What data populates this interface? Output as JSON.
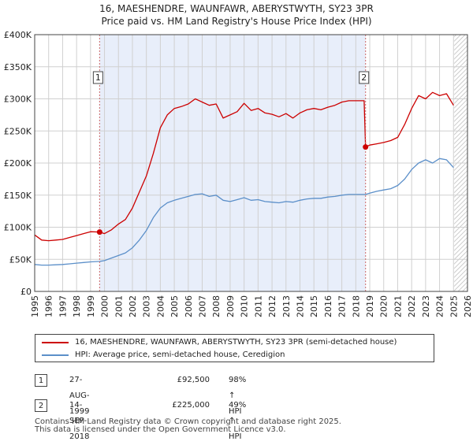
{
  "title_line1": "16, MAESHENDRE, WAUNFAWR, ABERYSTWYTH, SY23 3PR",
  "title_line2": "Price paid vs. HM Land Registry's House Price Index (HPI)",
  "colors": {
    "property": "#cc0000",
    "hpi": "#5b8fc9",
    "shade": "#e8eefa",
    "grid": "#d0d0d0",
    "marker_line": "#cc6666",
    "hatch": "#bbbbbb"
  },
  "legend": {
    "property_label": "16, MAESHENDRE, WAUNFAWR, ABERYSTWYTH, SY23 3PR (semi-detached house)",
    "hpi_label": "HPI: Average price, semi-detached house, Ceredigion"
  },
  "transactions": [
    {
      "num": "1",
      "date": "27-AUG-1999",
      "price": "£92,500",
      "hpi_change": "98% ↑ HPI"
    },
    {
      "num": "2",
      "date": "14-SEP-2018",
      "price": "£225,000",
      "hpi_change": "49% ↑ HPI"
    }
  ],
  "footer": {
    "line1": "Contains HM Land Registry data © Crown copyright and database right 2025.",
    "line2": "This data is licensed under the Open Government Licence v3.0."
  },
  "chart_data": {
    "type": "line",
    "title": "16, MAESHENDRE, WAUNFAWR, ABERYSTWYTH, SY23 3PR",
    "subtitle": "Price paid vs. HM Land Registry's House Price Index (HPI)",
    "xlim": [
      1995,
      2026
    ],
    "ylim": [
      0,
      400000
    ],
    "y_ticks": [
      0,
      50000,
      100000,
      150000,
      200000,
      250000,
      300000,
      350000,
      400000
    ],
    "y_tick_labels": [
      "£0",
      "£50K",
      "£100K",
      "£150K",
      "£200K",
      "£250K",
      "£300K",
      "£350K",
      "£400K"
    ],
    "x_ticks": [
      1995,
      1996,
      1997,
      1998,
      1999,
      2000,
      2001,
      2002,
      2003,
      2004,
      2005,
      2006,
      2007,
      2008,
      2009,
      2010,
      2011,
      2012,
      2013,
      2014,
      2015,
      2016,
      2017,
      2018,
      2019,
      2020,
      2021,
      2022,
      2023,
      2024,
      2025,
      2026
    ],
    "grid": true,
    "shaded_period": [
      1999.65,
      2018.7
    ],
    "future_hatch_from": 2025.05,
    "sales": [
      {
        "label": "1",
        "x": 1999.65,
        "y": 92500
      },
      {
        "label": "2",
        "x": 2018.7,
        "y": 225000
      }
    ],
    "series": [
      {
        "name": "16, MAESHENDRE, WAUNFAWR, ABERYSTWYTH, SY23 3PR (semi-detached house)",
        "x": [
          1995.0,
          1995.5,
          1996.0,
          1996.5,
          1997.0,
          1997.5,
          1998.0,
          1998.5,
          1999.0,
          1999.65,
          2000.0,
          2000.5,
          2001.0,
          2001.5,
          2002.0,
          2002.5,
          2003.0,
          2003.5,
          2004.0,
          2004.5,
          2005.0,
          2005.5,
          2006.0,
          2006.5,
          2007.0,
          2007.5,
          2008.0,
          2008.5,
          2009.0,
          2009.5,
          2010.0,
          2010.5,
          2011.0,
          2011.5,
          2012.0,
          2012.5,
          2013.0,
          2013.5,
          2014.0,
          2014.5,
          2015.0,
          2015.5,
          2016.0,
          2016.5,
          2017.0,
          2017.5,
          2018.0,
          2018.6,
          2018.7,
          2019.0,
          2019.5,
          2020.0,
          2020.5,
          2021.0,
          2021.5,
          2022.0,
          2022.5,
          2023.0,
          2023.5,
          2024.0,
          2024.5,
          2025.0
        ],
        "values": [
          88000,
          80000,
          79000,
          80000,
          81000,
          84000,
          87000,
          90000,
          93000,
          92500,
          90000,
          96000,
          105000,
          112000,
          130000,
          155000,
          180000,
          215000,
          255000,
          275000,
          285000,
          288000,
          292000,
          300000,
          295000,
          290000,
          292000,
          270000,
          275000,
          280000,
          293000,
          282000,
          285000,
          278000,
          276000,
          272000,
          277000,
          270000,
          278000,
          283000,
          285000,
          283000,
          287000,
          290000,
          295000,
          297000,
          297000,
          297000,
          225000,
          228000,
          230000,
          232000,
          235000,
          240000,
          260000,
          285000,
          305000,
          300000,
          310000,
          305000,
          308000,
          290000
        ]
      },
      {
        "name": "HPI: Average price, semi-detached house, Ceredigion",
        "x": [
          1995.0,
          1995.5,
          1996.0,
          1996.5,
          1997.0,
          1997.5,
          1998.0,
          1998.5,
          1999.0,
          1999.65,
          2000.0,
          2000.5,
          2001.0,
          2001.5,
          2002.0,
          2002.5,
          2003.0,
          2003.5,
          2004.0,
          2004.5,
          2005.0,
          2005.5,
          2006.0,
          2006.5,
          2007.0,
          2007.5,
          2008.0,
          2008.5,
          2009.0,
          2009.5,
          2010.0,
          2010.5,
          2011.0,
          2011.5,
          2012.0,
          2012.5,
          2013.0,
          2013.5,
          2014.0,
          2014.5,
          2015.0,
          2015.5,
          2016.0,
          2016.5,
          2017.0,
          2017.5,
          2018.0,
          2018.7,
          2019.0,
          2019.5,
          2020.0,
          2020.5,
          2021.0,
          2021.5,
          2022.0,
          2022.5,
          2023.0,
          2023.5,
          2024.0,
          2024.5,
          2025.0
        ],
        "values": [
          42000,
          41000,
          41000,
          41500,
          42000,
          43000,
          44000,
          45000,
          46000,
          46800,
          48000,
          52000,
          56000,
          60000,
          68000,
          80000,
          95000,
          115000,
          130000,
          138000,
          142000,
          145000,
          148000,
          151000,
          152000,
          148000,
          150000,
          142000,
          140000,
          143000,
          146000,
          142000,
          143000,
          140000,
          139000,
          138000,
          140000,
          139000,
          142000,
          144000,
          145000,
          145000,
          147000,
          148000,
          150000,
          151000,
          151000,
          151000,
          153000,
          156000,
          158000,
          160000,
          165000,
          175000,
          190000,
          200000,
          205000,
          200000,
          207000,
          205000,
          193000
        ]
      }
    ]
  }
}
